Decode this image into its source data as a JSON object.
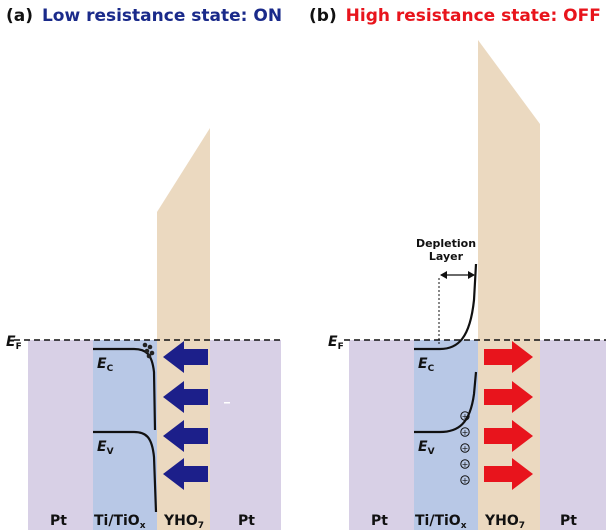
{
  "panel_a": {
    "label": "(a)",
    "title": "Low resistance state: ON",
    "title_color": "#1a2a8a",
    "ef_label": "E",
    "ef_sub": "F",
    "ec_label": "E",
    "ec_sub": "C",
    "ev_label": "E",
    "ev_sub": "V",
    "arrow_color": "#1c1f8a",
    "arrow_direction": "left",
    "layers": [
      {
        "main": "Pt",
        "sub": ""
      },
      {
        "main": "Ti/TiO",
        "sub": "x"
      },
      {
        "main": "YHO",
        "sub": "7"
      },
      {
        "main": "Pt",
        "sub": ""
      }
    ]
  },
  "panel_b": {
    "label": "(b)",
    "title": "High resistance state: OFF",
    "title_color": "#e8141c",
    "ef_label": "E",
    "ef_sub": "F",
    "ec_label": "E",
    "ec_sub": "C",
    "ev_label": "E",
    "ev_sub": "V",
    "depletion_line1": "Depletion",
    "depletion_line2": "Layer",
    "hole_symbol": "+",
    "arrow_color": "#e8141c",
    "arrow_direction": "right",
    "layers": [
      {
        "main": "Pt",
        "sub": ""
      },
      {
        "main": "Ti/TiO",
        "sub": "x"
      },
      {
        "main": "YHO",
        "sub": "7"
      },
      {
        "main": "Pt",
        "sub": ""
      }
    ]
  },
  "colors": {
    "pt": "#d8d0e6",
    "titox": "#b8c8e6",
    "yho": "#ebd9c0",
    "band": "#111111"
  }
}
